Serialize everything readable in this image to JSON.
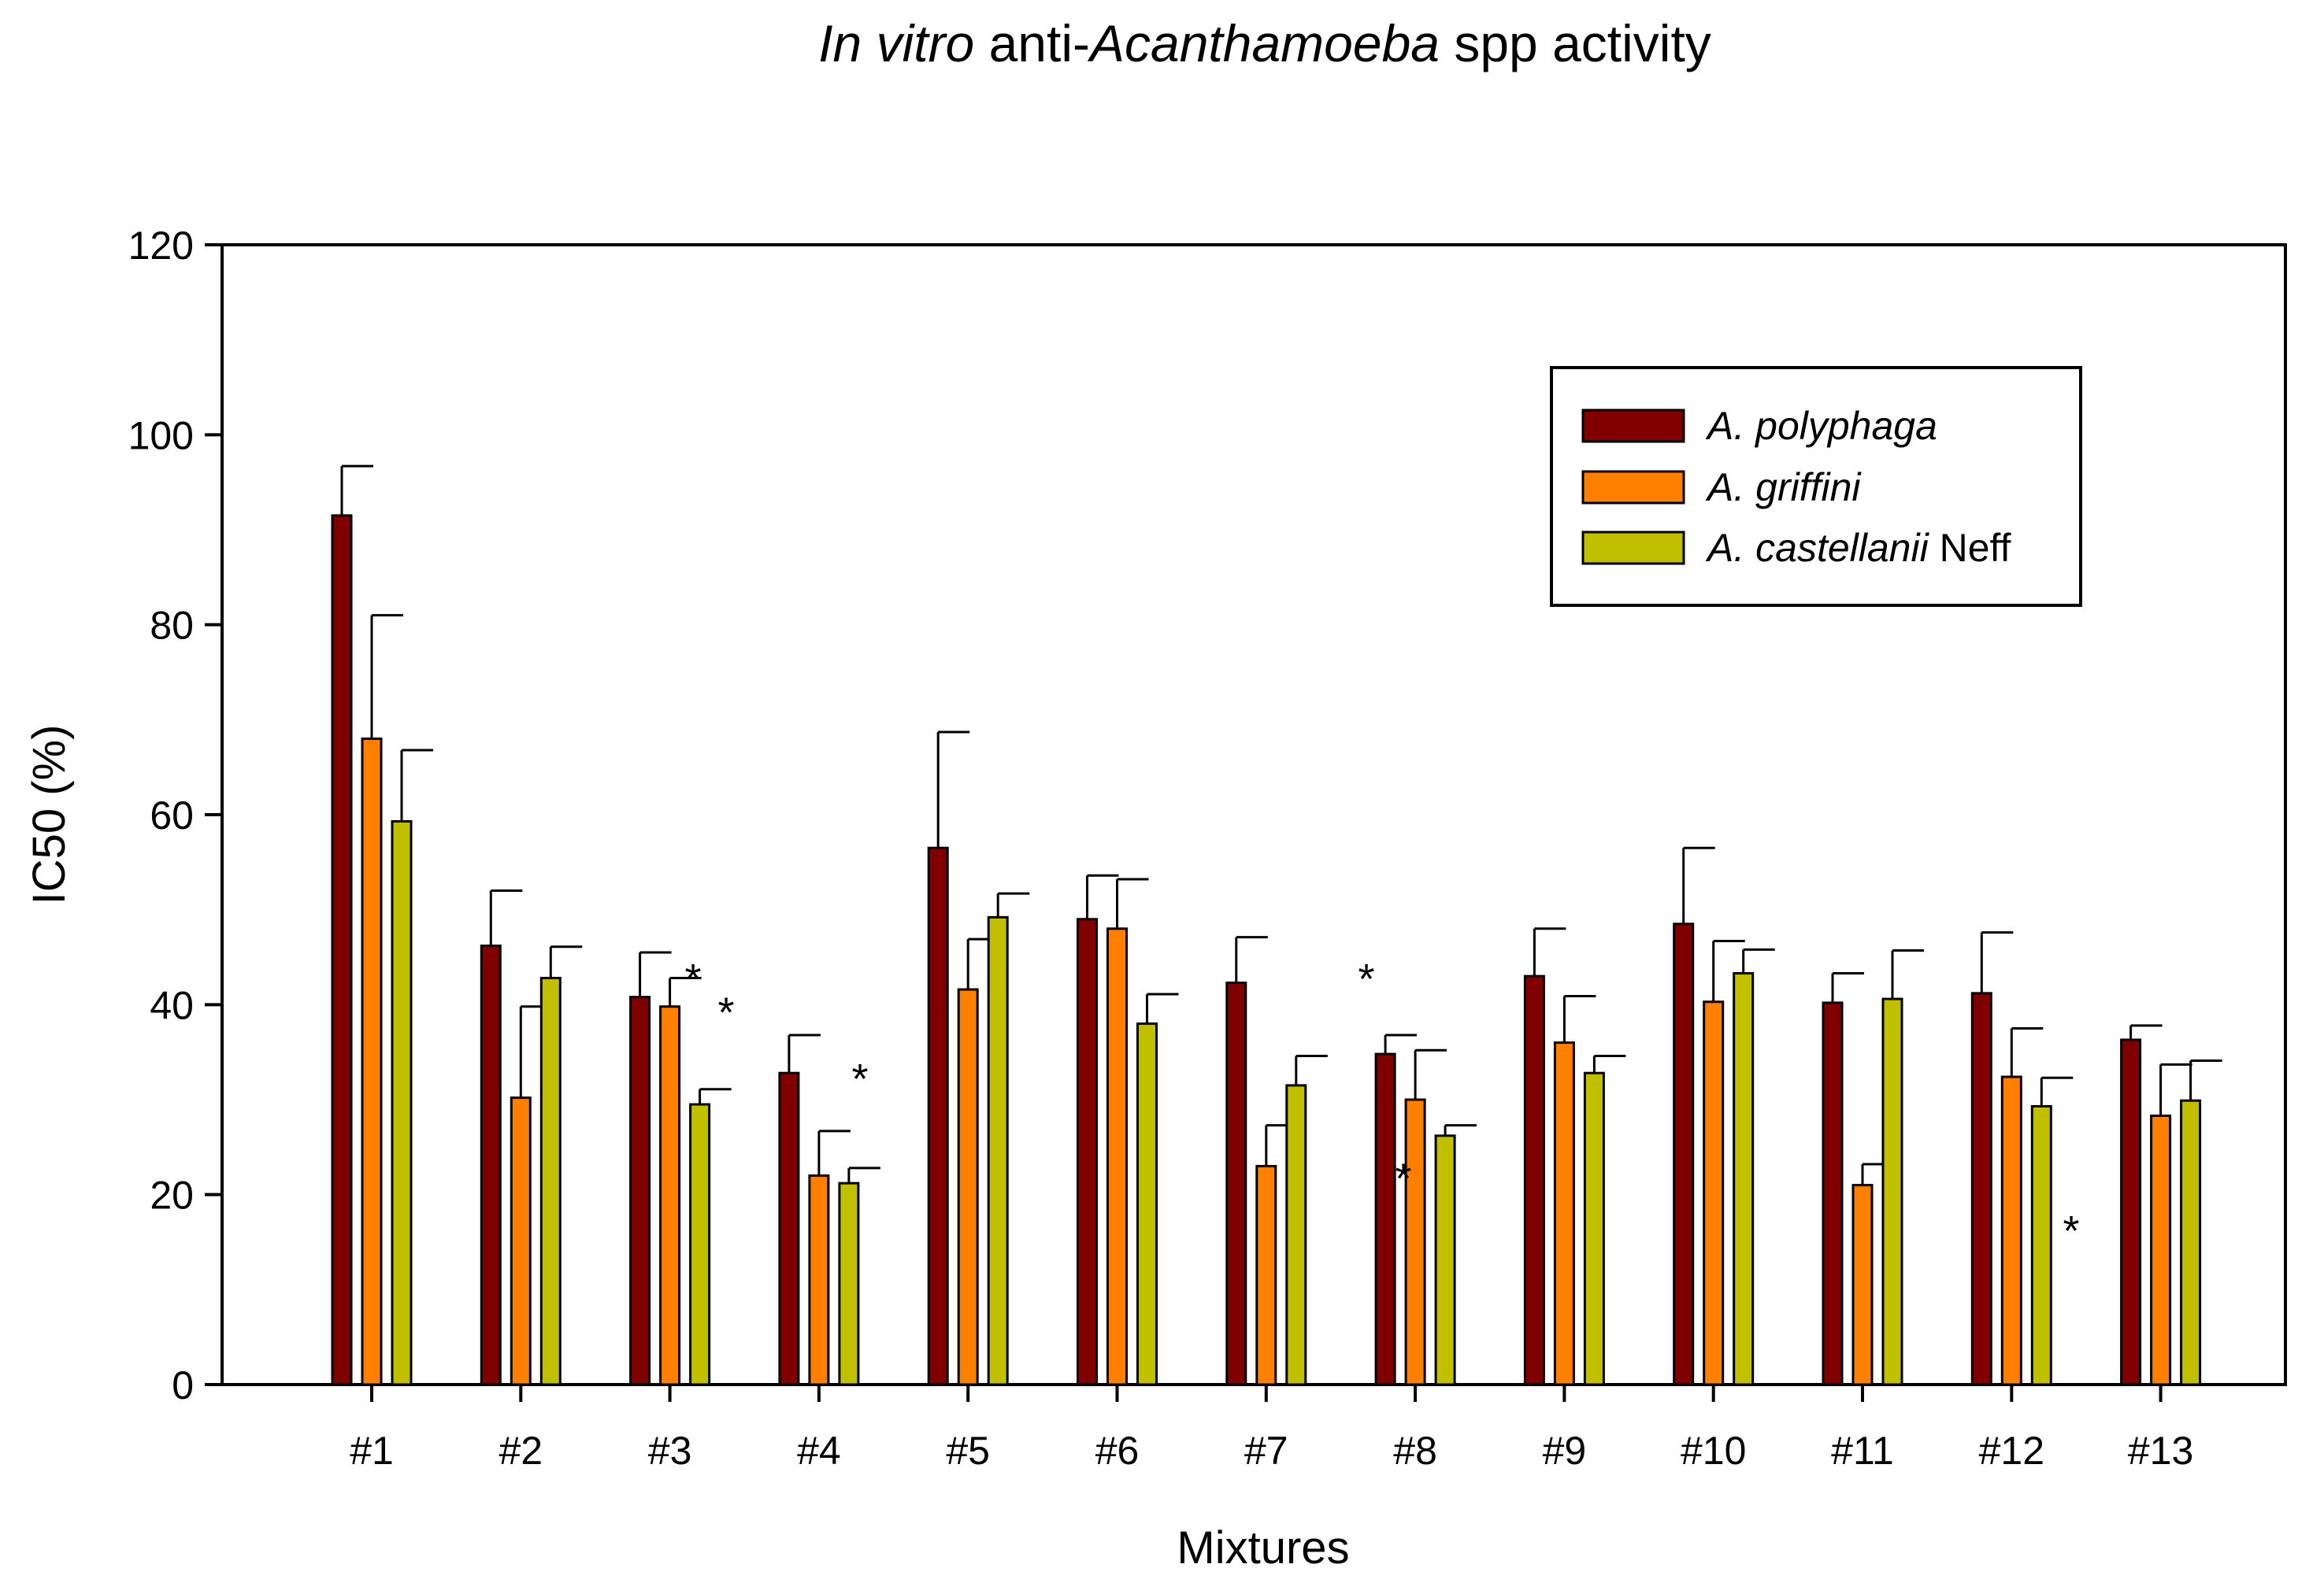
{
  "chart_data": {
    "type": "bar",
    "title": {
      "parts": [
        {
          "text": "In vitro",
          "italic": true
        },
        {
          "text": " anti-",
          "italic": false
        },
        {
          "text": "Acanthamoeba",
          "italic": true
        },
        {
          "text": " spp activity",
          "italic": false
        }
      ]
    },
    "xlabel": "Mixtures",
    "ylabel": "IC50 (%)",
    "ylim": [
      0,
      120
    ],
    "yticks": [
      0,
      20,
      40,
      60,
      80,
      100,
      120
    ],
    "categories": [
      "#1",
      "#2",
      "#3",
      "#4",
      "#5",
      "#6",
      "#7",
      "#8",
      "#9",
      "#10",
      "#11",
      "#12",
      "#13"
    ],
    "series": [
      {
        "name": "A. polyphaga",
        "label_parts": [
          {
            "text": "A.  polyphaga",
            "italic": true
          }
        ],
        "color": "#800000",
        "values": [
          91.5,
          46.2,
          40.8,
          32.8,
          56.5,
          49.0,
          42.3,
          34.8,
          43.0,
          48.5,
          40.2,
          41.2,
          36.3
        ],
        "errors": [
          5.2,
          5.8,
          4.7,
          4.0,
          12.2,
          4.6,
          4.8,
          2.0,
          5.0,
          8.0,
          3.1,
          6.4,
          1.5
        ]
      },
      {
        "name": "A. griffini",
        "label_parts": [
          {
            "text": "A.  griffini",
            "italic": true
          }
        ],
        "color": "#ff8000",
        "values": [
          68.0,
          30.2,
          39.8,
          22.0,
          41.6,
          48.0,
          23.0,
          30.0,
          36.0,
          40.3,
          21.0,
          32.4,
          28.3
        ],
        "errors": [
          13.0,
          9.6,
          3.0,
          4.7,
          5.3,
          5.2,
          4.3,
          5.2,
          4.9,
          6.4,
          2.2,
          5.1,
          5.4
        ]
      },
      {
        "name": "A. castellanii Neff",
        "label_parts": [
          {
            "text": "A.  castellanii",
            "italic": true
          },
          {
            "text": " Neff",
            "italic": false
          }
        ],
        "color": "#c0c000",
        "values": [
          59.3,
          42.8,
          29.5,
          21.2,
          49.2,
          38.0,
          31.5,
          26.2,
          32.8,
          43.3,
          40.6,
          29.3,
          29.9
        ],
        "errors": [
          7.5,
          3.3,
          1.6,
          1.6,
          2.5,
          3.1,
          3.1,
          1.1,
          1.8,
          2.5,
          5.1,
          3.0,
          4.2
        ]
      }
    ],
    "annotations": [
      {
        "text": "*",
        "category": "#3",
        "value": 43.5
      },
      {
        "text": "*",
        "category": "#3",
        "value": 40.0
      },
      {
        "text": "*",
        "category": "#4",
        "value": 33.0
      },
      {
        "text": "*",
        "category": "#8",
        "value": 43.5
      },
      {
        "text": "*",
        "category": "#8",
        "value": 22.5
      },
      {
        "text": "*",
        "category": "#12",
        "value": 17.0
      }
    ],
    "legend_position": "top-right",
    "grid": false
  }
}
